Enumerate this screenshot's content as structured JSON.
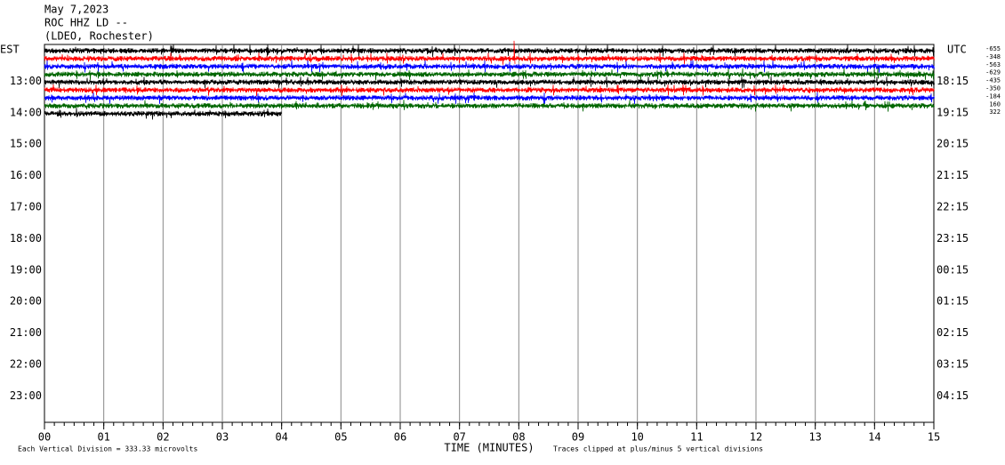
{
  "header": {
    "date": "May 7,2023",
    "station": "ROC HHZ LD --",
    "network": "(LDEO, Rochester)"
  },
  "left_axis": {
    "title": "EST",
    "labels": [
      "13:00",
      "14:00",
      "15:00",
      "16:00",
      "17:00",
      "18:00",
      "19:00",
      "20:00",
      "21:00",
      "22:00",
      "23:00"
    ]
  },
  "right_axis": {
    "title": "UTC",
    "labels": [
      "18:15",
      "19:15",
      "20:15",
      "21:15",
      "22:15",
      "23:15",
      "00:15",
      "01:15",
      "02:15",
      "03:15",
      "04:15"
    ]
  },
  "trace_offsets": [
    "-655",
    "-348",
    "-563",
    "-629",
    "-435",
    "-350",
    "-184",
    "160",
    "322"
  ],
  "x_axis": {
    "title": "TIME (MINUTES)",
    "ticks": [
      "00",
      "01",
      "02",
      "03",
      "04",
      "05",
      "06",
      "07",
      "08",
      "09",
      "10",
      "11",
      "12",
      "13",
      "14",
      "15"
    ]
  },
  "footer": {
    "scale_note": "Each Vertical Division = 333.33 microvolts",
    "clip_note": "Traces clipped at plus/minus 5 vertical divisions"
  }
}
